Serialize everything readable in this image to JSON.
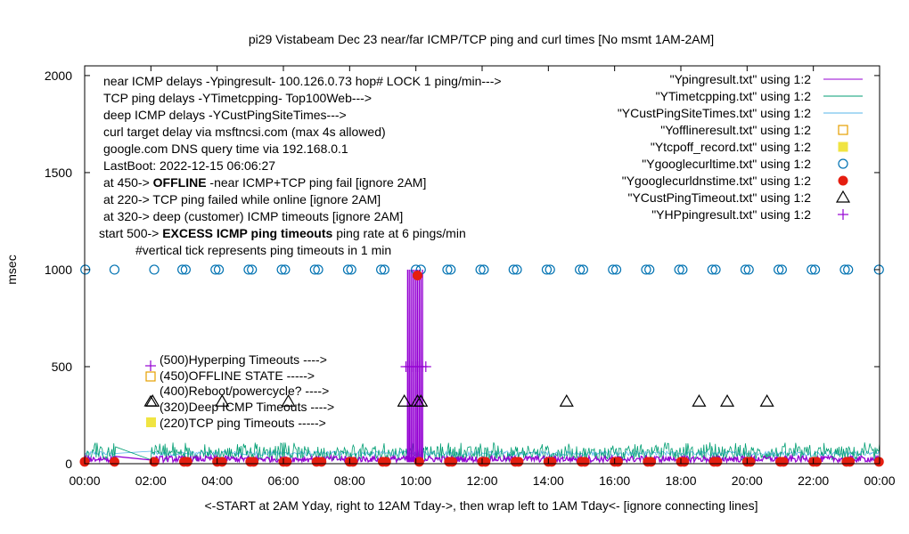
{
  "chart_data": {
    "type": "scatter",
    "title": "pi29 Vistabeam Dec 23  near/far ICMP/TCP ping and curl times [No msmt 1AM-2AM]",
    "xlabel": "<-START at 2AM Yday, right to 12AM Tday->, then wrap left to 1AM Tday<- [ignore connecting lines]",
    "ylabel": "msec",
    "xlim": [
      0,
      24
    ],
    "ylim": [
      0,
      2050
    ],
    "x_ticks": [
      "00:00",
      "02:00",
      "04:00",
      "06:00",
      "08:00",
      "10:00",
      "12:00",
      "14:00",
      "16:00",
      "18:00",
      "20:00",
      "22:00",
      "00:00"
    ],
    "y_ticks": [
      0,
      500,
      1000,
      1500,
      2000
    ],
    "grid": false,
    "legend_position": "top-right",
    "info_text": [
      "near ICMP delays -Ypingresult- 100.126.0.73 hop# LOCK 1 ping/min--->",
      "TCP ping delays -YTimetcpping- Top100Web--->",
      "deep ICMP delays -YCustPingSiteTimes--->",
      "curl target delay via msftncsi.com (max 4s allowed)",
      "google.com DNS query time via 192.168.0.1",
      "LastBoot: 2022-12-15 06:06:27"
    ],
    "info_offline": {
      "prefix": "at 450-> ",
      "bold": "OFFLINE",
      "rest": " -near ICMP+TCP ping fail [ignore 2AM]"
    },
    "info_tcpfail": "at 220-> TCP ping failed while online [ignore 2AM]",
    "info_deep": "at 320-> deep (customer) ICMP timeouts [ignore 2AM]",
    "info_excess": {
      "prefix": "start 500-> ",
      "bold": "EXCESS ICMP ping timeouts",
      "rest": " ping rate at 6 pings/min"
    },
    "info_vtick": "#vertical tick represents ping timeouts in 1 min",
    "key_labels": [
      "(500)Hyperping Timeouts ---->",
      "(450)OFFLINE STATE ----->",
      "(400)Reboot/powercycle? ---->",
      "(320)Deep ICMP Timeouts ---->",
      "(220)TCP ping Timeouts ----->"
    ],
    "series": [
      {
        "name": "\"Ypingresult.txt\" using 1:2",
        "color": "#9400d3",
        "style": "line",
        "baseline_range": [
          8,
          40
        ],
        "spikes": [
          [
            9.75,
            1000
          ],
          [
            9.8,
            1000
          ],
          [
            9.85,
            1000
          ],
          [
            9.9,
            1000
          ],
          [
            9.95,
            1000
          ],
          [
            10.0,
            1000
          ],
          [
            10.05,
            1000
          ],
          [
            10.1,
            1000
          ],
          [
            10.15,
            970
          ],
          [
            10.2,
            1000
          ]
        ]
      },
      {
        "name": "\"YTimetcpping.txt\" using 1:2",
        "color": "#009e73",
        "style": "line",
        "baseline_range": [
          15,
          90
        ]
      },
      {
        "name": "\"YCustPingSiteTimes.txt\" using 1:2",
        "color": "#56b4e9",
        "style": "line",
        "baseline_range": [
          40,
          65
        ]
      },
      {
        "name": "\"Yofflineresult.txt\" using 1:2",
        "color": "#e69f00",
        "style": "open-square",
        "points": []
      },
      {
        "name": "\"Ytcpoff_record.txt\" using 1:2",
        "color": "#f0e442",
        "style": "filled-square",
        "points": []
      },
      {
        "name": "\"Ygooglecurltime.txt\" using 1:2",
        "color": "#0072b2",
        "style": "open-circle",
        "points": [
          [
            0.02,
            1000
          ],
          [
            0.9,
            1000
          ],
          [
            2.1,
            1000
          ],
          [
            2.95,
            1000
          ],
          [
            3.05,
            1000
          ],
          [
            3.95,
            1000
          ],
          [
            4.05,
            1000
          ],
          [
            4.95,
            1000
          ],
          [
            5.05,
            1000
          ],
          [
            5.95,
            1000
          ],
          [
            6.05,
            1000
          ],
          [
            6.95,
            1000
          ],
          [
            7.05,
            1000
          ],
          [
            7.95,
            1000
          ],
          [
            8.05,
            1000
          ],
          [
            8.95,
            1000
          ],
          [
            9.05,
            1000
          ],
          [
            10.0,
            1000
          ],
          [
            10.15,
            1000
          ],
          [
            10.95,
            1000
          ],
          [
            11.05,
            1000
          ],
          [
            11.95,
            1000
          ],
          [
            12.05,
            1000
          ],
          [
            12.95,
            1000
          ],
          [
            13.05,
            1000
          ],
          [
            13.95,
            1000
          ],
          [
            14.05,
            1000
          ],
          [
            14.95,
            1000
          ],
          [
            15.05,
            1000
          ],
          [
            15.95,
            1000
          ],
          [
            16.05,
            1000
          ],
          [
            16.95,
            1000
          ],
          [
            17.05,
            1000
          ],
          [
            17.95,
            1000
          ],
          [
            18.05,
            1000
          ],
          [
            18.95,
            1000
          ],
          [
            19.05,
            1000
          ],
          [
            19.95,
            1000
          ],
          [
            20.05,
            1000
          ],
          [
            20.95,
            1000
          ],
          [
            21.05,
            1000
          ],
          [
            21.95,
            1000
          ],
          [
            22.05,
            1000
          ],
          [
            22.95,
            1000
          ],
          [
            23.05,
            1000
          ],
          [
            23.98,
            1000
          ]
        ]
      },
      {
        "name": "\"Ygooglecurldnstime.txt\" using 1:2",
        "color": "#e51e10",
        "style": "filled-circle",
        "points": [
          [
            0.0,
            10
          ],
          [
            0.9,
            10
          ],
          [
            2.1,
            10
          ],
          [
            3.0,
            10
          ],
          [
            3.1,
            10
          ],
          [
            4.0,
            10
          ],
          [
            4.15,
            10
          ],
          [
            5.0,
            10
          ],
          [
            5.1,
            10
          ],
          [
            6.0,
            10
          ],
          [
            6.1,
            10
          ],
          [
            7.0,
            10
          ],
          [
            7.15,
            10
          ],
          [
            8.0,
            10
          ],
          [
            8.1,
            10
          ],
          [
            9.0,
            10
          ],
          [
            9.1,
            10
          ],
          [
            10.05,
            970
          ],
          [
            10.1,
            10
          ],
          [
            11.0,
            10
          ],
          [
            11.1,
            10
          ],
          [
            12.0,
            10
          ],
          [
            12.1,
            10
          ],
          [
            13.0,
            10
          ],
          [
            13.1,
            10
          ],
          [
            14.0,
            10
          ],
          [
            14.1,
            10
          ],
          [
            15.0,
            10
          ],
          [
            15.1,
            10
          ],
          [
            16.0,
            10
          ],
          [
            16.1,
            10
          ],
          [
            17.0,
            10
          ],
          [
            17.1,
            10
          ],
          [
            18.0,
            10
          ],
          [
            18.1,
            10
          ],
          [
            19.0,
            10
          ],
          [
            19.1,
            10
          ],
          [
            20.0,
            10
          ],
          [
            20.1,
            10
          ],
          [
            21.0,
            10
          ],
          [
            21.1,
            10
          ],
          [
            22.0,
            10
          ],
          [
            22.1,
            10
          ],
          [
            23.0,
            10
          ],
          [
            23.1,
            10
          ],
          [
            23.98,
            10
          ]
        ]
      },
      {
        "name": "\"YCustPingTimeout.txt\" using 1:2",
        "color": "#000000",
        "style": "open-triangle",
        "points": [
          [
            2.05,
            320
          ],
          [
            4.15,
            320
          ],
          [
            6.15,
            320
          ],
          [
            9.65,
            320
          ],
          [
            10.05,
            320
          ],
          [
            10.15,
            320
          ],
          [
            14.55,
            320
          ],
          [
            18.55,
            320
          ],
          [
            19.4,
            320
          ],
          [
            20.6,
            320
          ]
        ]
      },
      {
        "name": "\"YHPpingresult.txt\" using 1:2",
        "color": "#9400d3",
        "style": "plus",
        "points": [
          [
            9.7,
            500
          ],
          [
            9.8,
            500
          ],
          [
            9.9,
            500
          ],
          [
            10.0,
            500
          ],
          [
            10.1,
            500
          ],
          [
            10.2,
            500
          ],
          [
            10.3,
            500
          ]
        ]
      }
    ]
  }
}
